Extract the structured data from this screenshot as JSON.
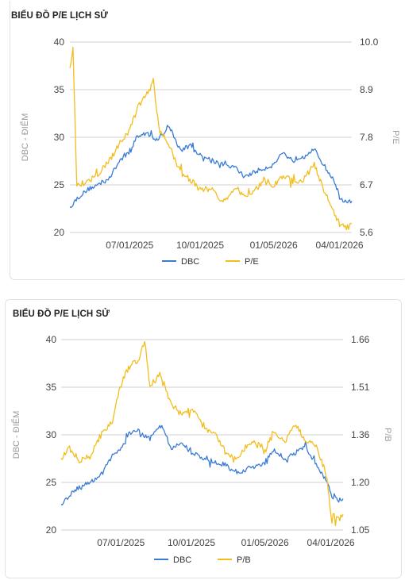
{
  "charts": [
    {
      "title": "BIỂU ĐỒ P/E LỊCH SỬ",
      "left_axis_title": "DBC - ĐIỂM",
      "right_axis_title": "P/E",
      "legend": [
        "DBC",
        "P/E"
      ],
      "colors": {
        "DBC": "#3a7bd5",
        "ratio": "#f2bd1d"
      }
    },
    {
      "title": "BIỂU ĐỒ P/E LỊCH SỬ",
      "left_axis_title": "DBC - ĐIỂM",
      "right_axis_title": "P/B",
      "legend": [
        "DBC",
        "P/B"
      ],
      "colors": {
        "DBC": "#3a7bd5",
        "ratio": "#f2bd1d"
      }
    }
  ],
  "chart_data": [
    {
      "type": "line",
      "title": "BIỂU ĐỒ P/E LỊCH SỬ",
      "ylabel": "DBC - ĐIỂM",
      "y2label": "P/E",
      "x_tick_labels": [
        "07/01/2025",
        "10/01/2025",
        "01/05/2026",
        "04/01/2026"
      ],
      "x_range": [
        "2025-04-14",
        "2026-04-17"
      ],
      "ylim": [
        20,
        40
      ],
      "y_ticks": [
        20,
        25,
        30,
        35,
        40
      ],
      "y2lim": [
        5.6,
        10.0
      ],
      "y2_ticks": [
        "5.6",
        "6.7",
        "7.8",
        "8.9",
        "10.0"
      ],
      "grid": true,
      "legend_position": "bottom",
      "series": [
        {
          "name": "DBC",
          "axis": "left",
          "x": [
            "2025-04-14",
            "2025-04-25",
            "2025-05-09",
            "2025-05-23",
            "2025-06-06",
            "2025-06-20",
            "2025-06-30",
            "2025-07-11",
            "2025-07-25",
            "2025-08-08",
            "2025-08-22",
            "2025-09-05",
            "2025-09-19",
            "2025-10-01",
            "2025-10-17",
            "2025-10-31",
            "2025-11-14",
            "2025-11-28",
            "2025-12-12",
            "2025-12-26",
            "2026-01-05",
            "2026-01-16",
            "2026-01-30",
            "2026-02-13",
            "2026-02-27",
            "2026-03-13",
            "2026-03-27",
            "2026-04-01",
            "2026-04-10",
            "2026-04-17"
          ],
          "values": [
            22.7,
            23.7,
            24.6,
            25.1,
            25.9,
            27.8,
            28.4,
            30.1,
            30.4,
            29.6,
            31.1,
            28.6,
            29.2,
            28.1,
            27.6,
            27.1,
            26.9,
            25.9,
            26.4,
            26.8,
            27.1,
            28.4,
            27.6,
            28.1,
            28.7,
            26.9,
            25.1,
            23.7,
            23.1,
            23.3
          ]
        },
        {
          "name": "P/E",
          "axis": "right",
          "x": [
            "2025-04-14",
            "2025-04-18",
            "2025-04-23",
            "2025-05-09",
            "2025-05-23",
            "2025-06-06",
            "2025-06-20",
            "2025-06-30",
            "2025-07-11",
            "2025-07-25",
            "2025-08-01",
            "2025-08-08",
            "2025-08-22",
            "2025-09-05",
            "2025-09-19",
            "2025-10-01",
            "2025-10-17",
            "2025-10-31",
            "2025-11-14",
            "2025-11-28",
            "2025-12-12",
            "2025-12-26",
            "2026-01-05",
            "2026-01-16",
            "2026-01-30",
            "2026-02-13",
            "2026-02-27",
            "2026-03-13",
            "2026-03-27",
            "2026-04-01",
            "2026-04-10",
            "2026-04-17"
          ],
          "values": [
            9.4,
            9.9,
            6.7,
            6.8,
            7.0,
            7.3,
            7.7,
            7.9,
            8.5,
            8.8,
            9.1,
            8.0,
            7.6,
            7.0,
            6.8,
            6.6,
            6.6,
            6.3,
            6.6,
            6.4,
            6.6,
            6.8,
            6.7,
            6.9,
            6.8,
            6.8,
            7.2,
            6.5,
            6.0,
            5.8,
            5.7,
            5.8
          ]
        }
      ]
    },
    {
      "type": "line",
      "title": "BIỂU ĐỒ P/E LỊCH SỬ",
      "ylabel": "DBC - ĐIỂM",
      "y2label": "P/B",
      "x_tick_labels": [
        "07/01/2025",
        "10/01/2025",
        "01/05/2026",
        "04/01/2026"
      ],
      "x_range": [
        "2025-04-14",
        "2026-04-17"
      ],
      "ylim": [
        20,
        40
      ],
      "y_ticks": [
        20,
        25,
        30,
        35,
        40
      ],
      "y2lim": [
        1.05,
        1.66
      ],
      "y2_ticks": [
        "1.05",
        "1.20",
        "1.36",
        "1.51",
        "1.66"
      ],
      "grid": true,
      "legend_position": "bottom",
      "series": [
        {
          "name": "DBC",
          "axis": "left",
          "x": [
            "2025-04-14",
            "2025-04-25",
            "2025-05-09",
            "2025-05-23",
            "2025-06-06",
            "2025-06-20",
            "2025-06-30",
            "2025-07-11",
            "2025-07-25",
            "2025-08-08",
            "2025-08-22",
            "2025-09-05",
            "2025-09-19",
            "2025-10-01",
            "2025-10-17",
            "2025-10-31",
            "2025-11-14",
            "2025-11-28",
            "2025-12-12",
            "2025-12-26",
            "2026-01-05",
            "2026-01-16",
            "2026-01-30",
            "2026-02-13",
            "2026-02-27",
            "2026-03-13",
            "2026-03-27",
            "2026-04-01",
            "2026-04-10",
            "2026-04-17"
          ],
          "values": [
            22.7,
            23.7,
            24.6,
            25.1,
            25.9,
            27.8,
            28.4,
            30.1,
            30.4,
            29.6,
            31.1,
            28.6,
            29.2,
            28.1,
            27.6,
            27.1,
            26.9,
            25.9,
            26.4,
            26.8,
            27.1,
            28.4,
            27.6,
            28.1,
            28.7,
            26.9,
            25.1,
            23.7,
            23.1,
            23.3
          ]
        },
        {
          "name": "P/B",
          "axis": "right",
          "x": [
            "2025-04-14",
            "2025-04-25",
            "2025-05-09",
            "2025-05-23",
            "2025-06-06",
            "2025-06-20",
            "2025-06-30",
            "2025-07-11",
            "2025-07-25",
            "2025-08-01",
            "2025-08-08",
            "2025-08-22",
            "2025-09-05",
            "2025-09-19",
            "2025-10-01",
            "2025-10-17",
            "2025-10-31",
            "2025-11-14",
            "2025-11-28",
            "2025-12-12",
            "2025-12-26",
            "2026-01-05",
            "2026-01-16",
            "2026-01-30",
            "2026-02-13",
            "2026-02-27",
            "2026-03-13",
            "2026-03-27",
            "2026-04-01",
            "2026-04-10",
            "2026-04-17"
          ],
          "values": [
            1.28,
            1.31,
            1.27,
            1.29,
            1.36,
            1.4,
            1.51,
            1.57,
            1.6,
            1.66,
            1.51,
            1.55,
            1.45,
            1.42,
            1.44,
            1.38,
            1.36,
            1.3,
            1.27,
            1.32,
            1.33,
            1.3,
            1.37,
            1.33,
            1.39,
            1.34,
            1.32,
            1.22,
            1.1,
            1.08,
            1.1
          ]
        }
      ]
    }
  ]
}
